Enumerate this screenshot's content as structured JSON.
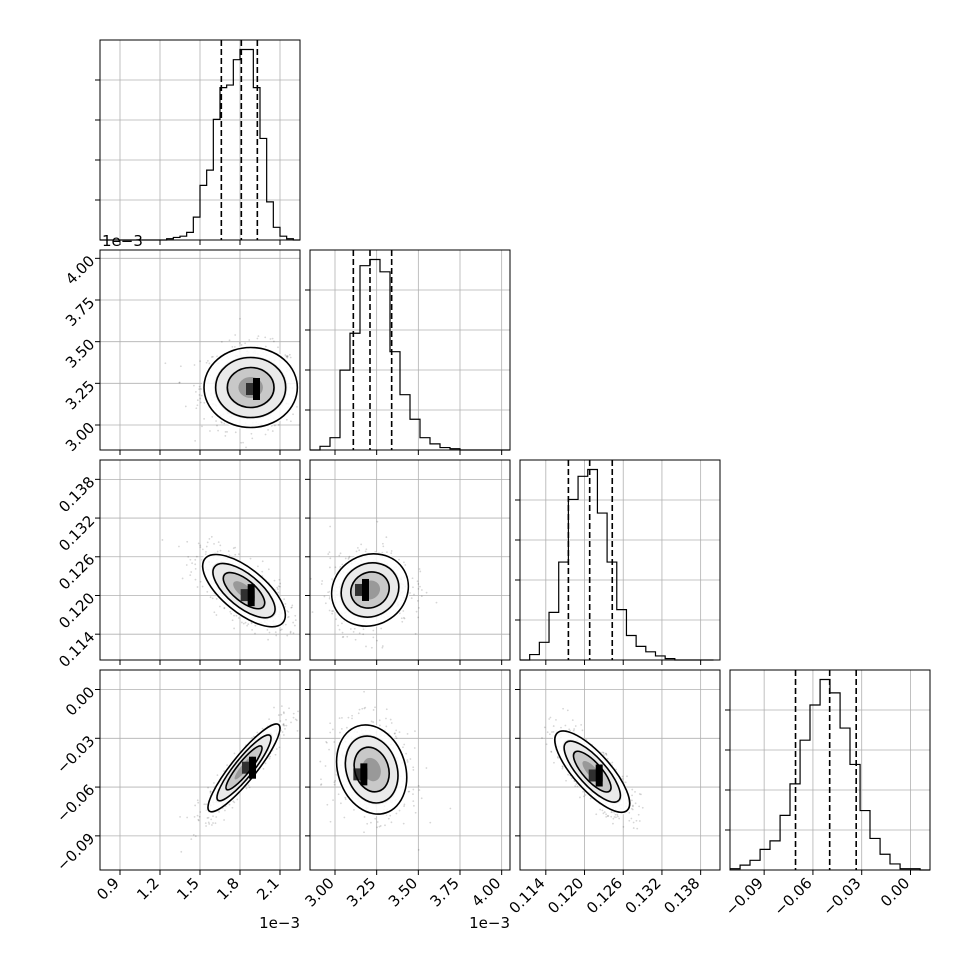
{
  "chart_data": {
    "type": "corner",
    "grid": true,
    "parameters": [
      {
        "range": [
          0.00075,
          0.00225
        ],
        "ticks": [
          0.0009,
          0.0012,
          0.0015,
          0.0018,
          0.0021
        ],
        "tick_labels": [
          "0.9",
          "1.2",
          "1.5",
          "1.8",
          "2.1"
        ],
        "offset_label": "1e−3"
      },
      {
        "range": [
          0.00285,
          0.00405
        ],
        "ticks": [
          0.003,
          0.00325,
          0.0035,
          0.00375,
          0.004
        ],
        "tick_labels": [
          "3.00",
          "3.25",
          "3.50",
          "3.75",
          "4.00"
        ],
        "offset_label": "1e−3"
      },
      {
        "range": [
          0.11,
          0.141
        ],
        "ticks": [
          0.114,
          0.12,
          0.126,
          0.132,
          0.138
        ],
        "tick_labels": [
          "0.114",
          "0.120",
          "0.126",
          "0.132",
          "0.138"
        ],
        "offset_label": ""
      },
      {
        "range": [
          -0.111,
          0.012
        ],
        "ticks": [
          -0.09,
          -0.06,
          -0.03,
          0.0
        ],
        "tick_labels": [
          "−0.09",
          "−0.06",
          "−0.03",
          "0.00"
        ],
        "offset_label": ""
      }
    ],
    "histograms": [
      {
        "bin_edges": [
          0.00075,
          0.0008,
          0.00085,
          0.0009,
          0.00095,
          0.001,
          0.00105,
          0.0011,
          0.00115,
          0.0012,
          0.00125,
          0.0013,
          0.00135,
          0.0014,
          0.00145,
          0.0015,
          0.00155,
          0.0016,
          0.00165,
          0.0017,
          0.00175,
          0.0018,
          0.00185,
          0.0019,
          0.00195,
          0.002,
          0.00205,
          0.0021,
          0.00215,
          0.0022,
          0.00225
        ],
        "counts": [
          0,
          0,
          0,
          0,
          0,
          0,
          0,
          0,
          0,
          0,
          1,
          2,
          3,
          6,
          18,
          43,
          55,
          95,
          120,
          122,
          142,
          150,
          150,
          120,
          80,
          30,
          10,
          3,
          1,
          0
        ],
        "quantiles": [
          0.00166,
          0.00181,
          0.00193
        ]
      },
      {
        "bin_edges": [
          0.00285,
          0.00291,
          0.00297,
          0.00303,
          0.00309,
          0.00315,
          0.00321,
          0.00327,
          0.00333,
          0.00339,
          0.00345,
          0.00351,
          0.00357,
          0.00363,
          0.00369,
          0.00375,
          0.00381,
          0.00387,
          0.00393,
          0.00399,
          0.00405
        ],
        "counts": [
          0,
          3,
          10,
          65,
          95,
          150,
          155,
          145,
          80,
          45,
          25,
          10,
          5,
          2,
          1,
          0,
          0,
          0,
          0,
          0
        ],
        "quantiles": [
          0.00311,
          0.00321,
          0.00334
        ]
      },
      {
        "bin_edges": [
          0.11,
          0.1115,
          0.113,
          0.1145,
          0.116,
          0.1175,
          0.119,
          0.1205,
          0.122,
          0.1235,
          0.125,
          0.1265,
          0.128,
          0.1295,
          0.131,
          0.1325,
          0.134,
          0.1355,
          0.137,
          0.1385,
          0.14
        ],
        "counts": [
          0,
          4,
          13,
          35,
          72,
          118,
          135,
          140,
          108,
          72,
          37,
          18,
          10,
          6,
          3,
          1,
          0,
          0,
          0,
          0
        ],
        "quantiles": [
          0.1175,
          0.1208,
          0.1243
        ]
      },
      {
        "bin_edges": [
          -0.111,
          -0.1048,
          -0.0987,
          -0.0925,
          -0.0864,
          -0.0802,
          -0.0741,
          -0.0679,
          -0.0618,
          -0.0556,
          -0.0495,
          -0.0433,
          -0.0372,
          -0.031,
          -0.0249,
          -0.0187,
          -0.0126,
          -0.0064,
          -0.0003,
          0.0059,
          0.012
        ],
        "counts": [
          1,
          4,
          8,
          17,
          24,
          45,
          71,
          107,
          136,
          157,
          146,
          117,
          87,
          49,
          26,
          13,
          5,
          1,
          1,
          0
        ],
        "quantiles": [
          -0.0707,
          -0.0497,
          -0.0334
        ]
      }
    ],
    "pairs": [
      {
        "x": 0,
        "y": 1,
        "mean": [
          0.00188,
          0.003225
        ],
        "std": [
          0.000175,
          0.00012
        ],
        "corr": 0.0,
        "peak": [
          0.00192,
          0.00321
        ]
      },
      {
        "x": 0,
        "y": 2,
        "mean": [
          0.00183,
          0.12075
        ],
        "std": [
          0.000155,
          0.0028
        ],
        "corr": -0.68,
        "peak": [
          0.00188,
          0.1199
        ]
      },
      {
        "x": 0,
        "y": 3,
        "mean": [
          0.00183,
          -0.0482
        ],
        "std": [
          0.000135,
          0.0135
        ],
        "corr": 0.9,
        "peak": [
          0.00189,
          -0.0487
        ]
      },
      {
        "x": 1,
        "y": 2,
        "mean": [
          0.00321,
          0.12085
        ],
        "std": [
          0.000115,
          0.0028
        ],
        "corr": 0.1,
        "peak": [
          0.00318,
          0.1207
        ]
      },
      {
        "x": 1,
        "y": 3,
        "mean": [
          0.00322,
          -0.0492
        ],
        "std": [
          0.000105,
          0.0137
        ],
        "corr": -0.18,
        "peak": [
          0.00317,
          -0.0528
        ]
      },
      {
        "x": 2,
        "y": 3,
        "mean": [
          0.1212,
          -0.0505
        ],
        "std": [
          0.0029,
          0.0125
        ],
        "corr": -0.78,
        "peak": [
          0.1222,
          -0.0535
        ]
      }
    ],
    "contour_levels_sigma": [
      0.5,
      1.0,
      1.5,
      2.0
    ]
  }
}
